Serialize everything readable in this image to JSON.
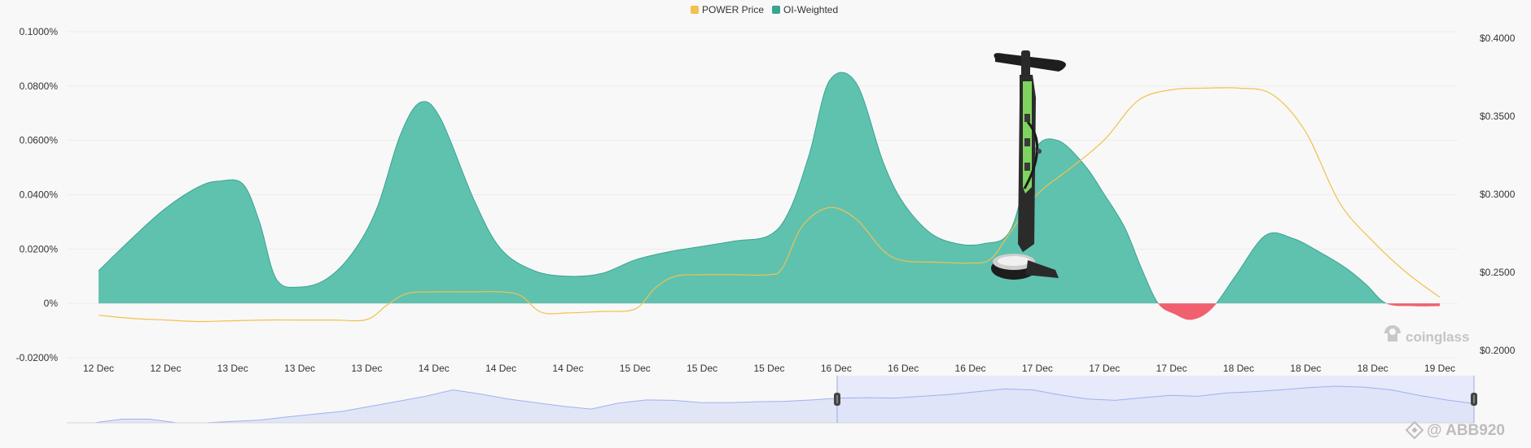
{
  "colors": {
    "oi_fill": "#5fc2af",
    "oi_line": "#3aa58f",
    "oi_negative": "#f0606e",
    "price_line": "#f2c14e",
    "navigator_fill": "#dde3f7",
    "navigator_line": "#9fb1ef",
    "grid": "#ececec",
    "background": "#f8f8f8"
  },
  "legend": {
    "price_label": "POWER Price",
    "oi_label": "OI-Weighted"
  },
  "watermarks": {
    "coinglass": "coinglass",
    "author": "@ ABB920"
  },
  "chart_data": {
    "type": "area",
    "x_tick_labels": [
      "12 Dec",
      "12 Dec",
      "13 Dec",
      "13 Dec",
      "13 Dec",
      "14 Dec",
      "14 Dec",
      "14 Dec",
      "15 Dec",
      "15 Dec",
      "15 Dec",
      "16 Dec",
      "16 Dec",
      "16 Dec",
      "17 Dec",
      "17 Dec",
      "17 Dec",
      "18 Dec",
      "18 Dec",
      "18 Dec",
      "19 Dec"
    ],
    "y_left": {
      "tick_labels": [
        "0.1000%",
        "0.0800%",
        "0.0600%",
        "0.0400%",
        "0.0200%",
        "0%",
        "-0.0200%"
      ],
      "range": [
        -0.02,
        0.1
      ]
    },
    "y_right": {
      "tick_labels": [
        "$0.4000",
        "$0.3500",
        "$0.3000",
        "$0.2500",
        "$0.2000"
      ],
      "range": [
        0.2,
        0.4
      ]
    },
    "x_range": [
      0,
      20
    ],
    "series": [
      {
        "name": "OI-Weighted",
        "axis": "left",
        "type": "area",
        "x": [
          0,
          0.5,
          1,
          1.5,
          1.8,
          2.15,
          2.4,
          2.65,
          3,
          3.4,
          3.8,
          4.15,
          4.5,
          4.8,
          5.1,
          5.6,
          6,
          6.5,
          7,
          7.5,
          8,
          8.5,
          9,
          9.5,
          10,
          10.3,
          10.6,
          10.9,
          11.3,
          11.7,
          12,
          12.4,
          12.8,
          13.2,
          13.6,
          13.95,
          14.3,
          14.7,
          15,
          15.3,
          15.55,
          15.8,
          16.05,
          16.3,
          16.6,
          16.95,
          17.4,
          17.8,
          18.2,
          18.6,
          18.9,
          19.2,
          19.6,
          20
        ],
        "values": [
          0.012,
          0.024,
          0.035,
          0.043,
          0.045,
          0.044,
          0.03,
          0.009,
          0.006,
          0.009,
          0.019,
          0.035,
          0.062,
          0.074,
          0.068,
          0.038,
          0.02,
          0.012,
          0.01,
          0.011,
          0.016,
          0.019,
          0.021,
          0.023,
          0.025,
          0.034,
          0.055,
          0.082,
          0.081,
          0.052,
          0.037,
          0.026,
          0.022,
          0.022,
          0.027,
          0.056,
          0.06,
          0.051,
          0.04,
          0.028,
          0.013,
          0.0,
          -0.004,
          -0.006,
          -0.002,
          0.01,
          0.025,
          0.024,
          0.019,
          0.013,
          0.007,
          0.0,
          -0.001,
          -0.001
        ]
      },
      {
        "name": "POWER Price",
        "axis": "right",
        "type": "line",
        "x": [
          0,
          0.5,
          1,
          1.5,
          2,
          2.5,
          3,
          3.5,
          4,
          4.3,
          4.6,
          5,
          5.5,
          6,
          6.3,
          6.6,
          7,
          7.5,
          8,
          8.3,
          8.6,
          9,
          9.5,
          10,
          10.2,
          10.5,
          10.9,
          11.3,
          11.7,
          12,
          12.5,
          13,
          13.3,
          13.6,
          14,
          14.5,
          15,
          15.5,
          16,
          16.5,
          17,
          17.5,
          18,
          18.5,
          19,
          19.5,
          20
        ],
        "values": [
          0.2225,
          0.2205,
          0.2195,
          0.2185,
          0.219,
          0.2195,
          0.2195,
          0.2195,
          0.2198,
          0.229,
          0.2365,
          0.2375,
          0.2375,
          0.2375,
          0.235,
          0.2245,
          0.224,
          0.225,
          0.2265,
          0.24,
          0.2475,
          0.2485,
          0.2485,
          0.2485,
          0.253,
          0.28,
          0.2915,
          0.284,
          0.264,
          0.2575,
          0.2565,
          0.256,
          0.2585,
          0.276,
          0.3,
          0.317,
          0.335,
          0.36,
          0.367,
          0.368,
          0.368,
          0.364,
          0.34,
          0.295,
          0.27,
          0.25,
          0.234
        ]
      }
    ],
    "navigator": {
      "values": [
        0,
        0,
        0.008,
        0.008,
        0,
        0,
        0.003,
        0.006,
        0.013,
        0.019,
        0.025,
        0.036,
        0.047,
        0.058,
        0.072,
        0.063,
        0.052,
        0.044,
        0.036,
        0.03,
        0.043,
        0.05,
        0.049,
        0.044,
        0.044,
        0.046,
        0.047,
        0.05,
        0.054,
        0.055,
        0.054,
        0.058,
        0.062,
        0.068,
        0.074,
        0.072,
        0.061,
        0.052,
        0.049,
        0.055,
        0.06,
        0.058,
        0.065,
        0.068,
        0.072,
        0.077,
        0.08,
        0.078,
        0.072,
        0.06,
        0.05,
        0.042
      ],
      "selection_start_fraction": 0.5
    }
  }
}
